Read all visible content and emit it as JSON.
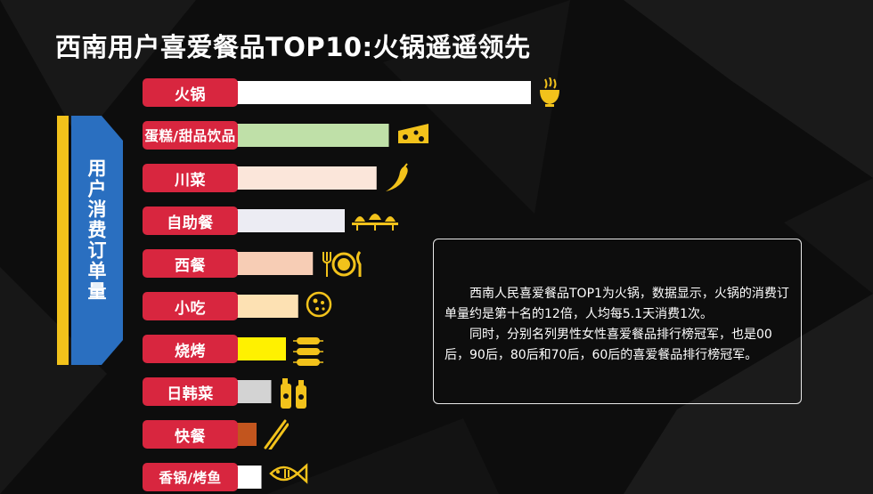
{
  "title": "西南用户喜爱餐品TOP10:火锅遥遥领先",
  "ylabel": "用户消费订单量",
  "note": {
    "para1": "西南人民喜爱餐品TOP1为火锅，数据显示，火锅的消费订单量约是第十名的12倍，人均每5.1天消费1次。",
    "para2": "同时，分别名列男性女性喜爱餐品排行榜冠军，也是00后，90后，80后和70后，60后的喜爱餐品排行榜冠军。"
  },
  "chart_data": {
    "type": "bar",
    "orientation": "horizontal",
    "categories": [
      "火锅",
      "蛋糕/甜品饮品",
      "川菜",
      "自助餐",
      "西餐",
      "小吃",
      "烧烤",
      "日韩菜",
      "快餐",
      "香锅/烤鱼"
    ],
    "values": [
      12,
      6.2,
      5.7,
      4.4,
      3.1,
      2.5,
      2.0,
      1.4,
      0.8,
      1.0
    ],
    "colors": [
      "#ffffff",
      "#bfe0a8",
      "#fbe6da",
      "#ececf3",
      "#f7cdb5",
      "#fde1b3",
      "#fff100",
      "#d3d3d3",
      "#c2551e",
      "#ffffff"
    ],
    "icons": [
      "hotpot-icon",
      "cheese-cake-icon",
      "chili-pepper-icon",
      "buffet-icon",
      "western-dining-icon",
      "pizza-icon",
      "bbq-skewer-icon",
      "sauce-bottles-icon",
      "chopsticks-icon",
      "fish-icon"
    ],
    "ylabel": "用户消费订单量",
    "xlabel": "",
    "label_color": "#d8263f",
    "axis_color": "#2a6fc0",
    "axis_accent": "#f2c21b",
    "legend": "none",
    "grid": false
  }
}
